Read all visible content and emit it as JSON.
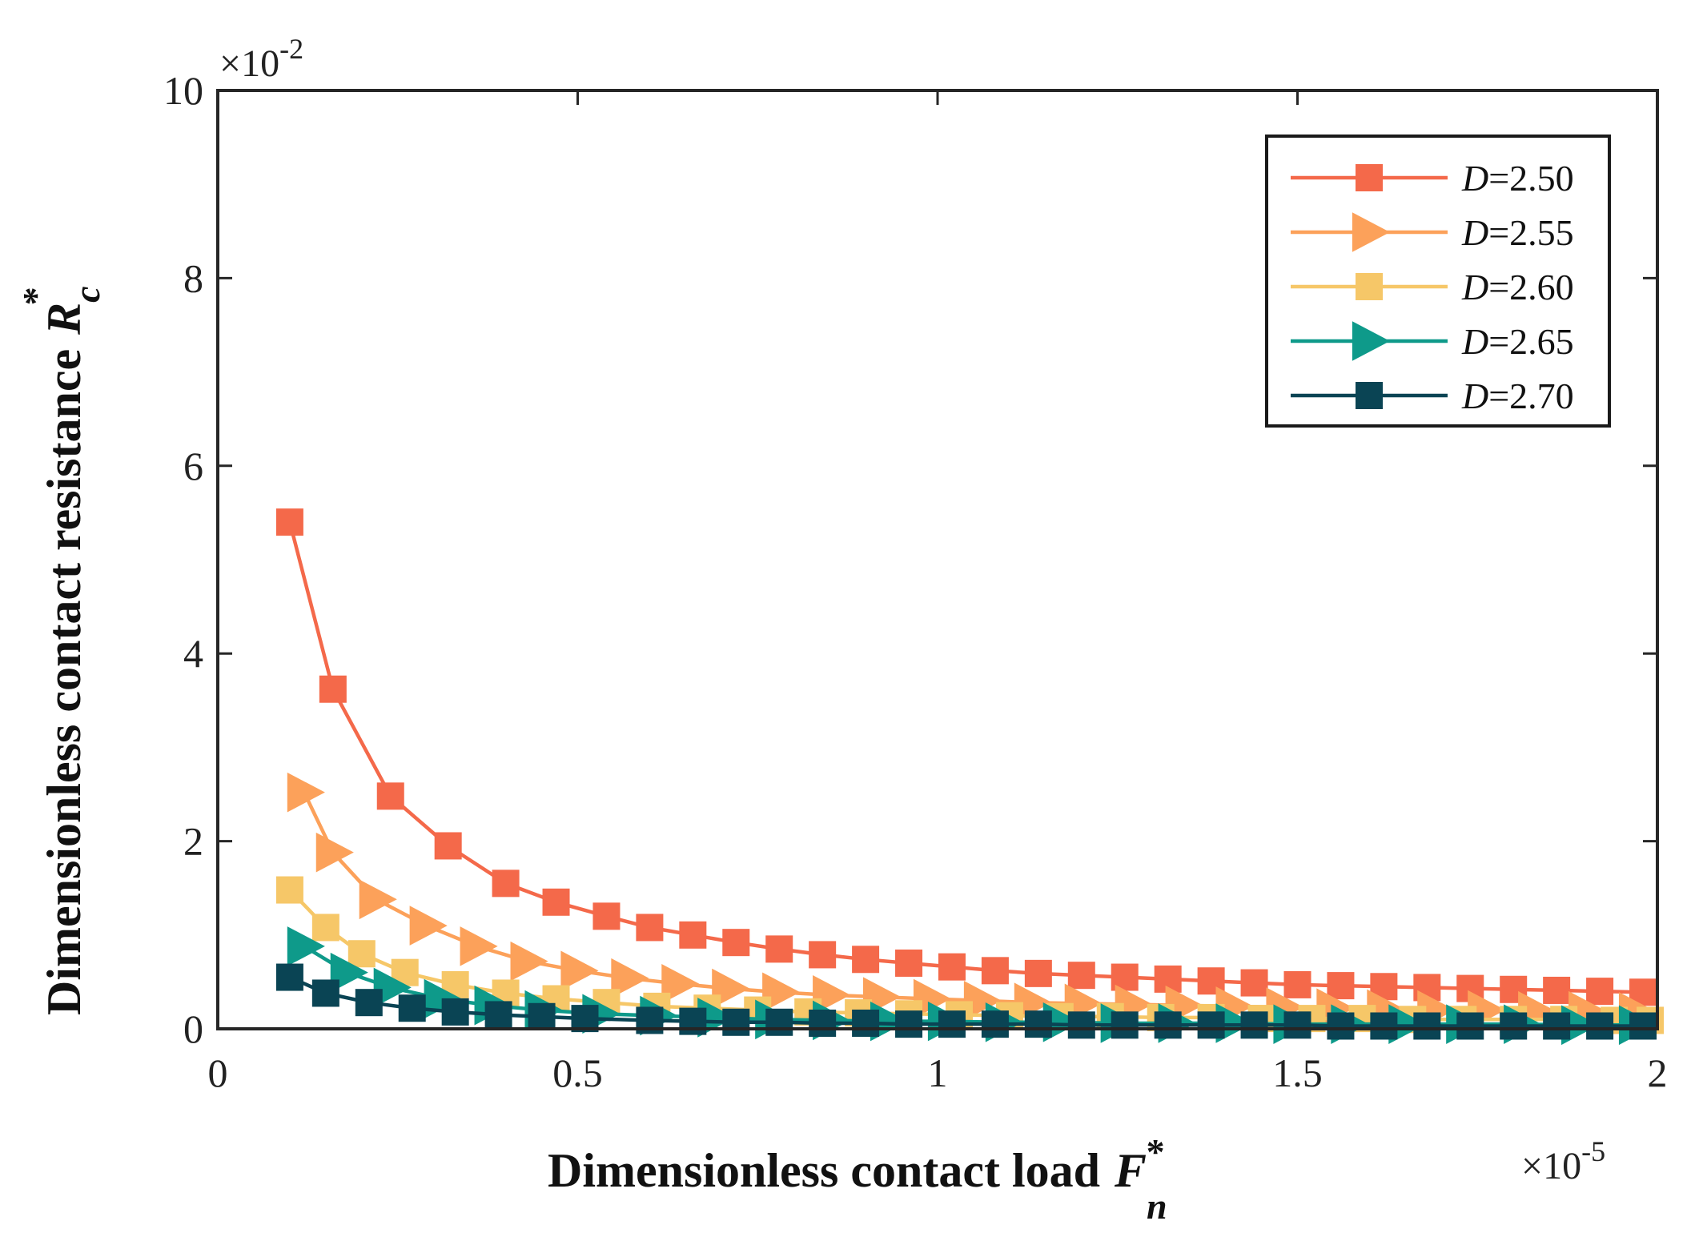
{
  "chart_data": {
    "type": "line",
    "xlabel": "Dimensionless contact load",
    "xlabel_symbol": "F",
    "xlabel_sub": "n",
    "xlabel_sup": "*",
    "ylabel": "Dimensionless contact resistance",
    "ylabel_symbol": "R",
    "ylabel_sub": "c",
    "ylabel_sup": "*",
    "x_exponent_prefix": "×10",
    "x_exponent_power": "-5",
    "y_exponent_prefix": "×10",
    "y_exponent_power": "-2",
    "xlim": [
      0,
      2
    ],
    "ylim": [
      0,
      10
    ],
    "xticks": [
      0,
      0.5,
      1,
      1.5,
      2
    ],
    "xtick_labels": [
      "0",
      "0.5",
      "1",
      "1.5",
      "2"
    ],
    "yticks": [
      0,
      2,
      4,
      6,
      8,
      10
    ],
    "ytick_labels": [
      "0",
      "2",
      "4",
      "6",
      "8",
      "10"
    ],
    "legend_position": "top-right",
    "grid": false,
    "series": [
      {
        "name": "D=2.50",
        "legend_var": "D",
        "legend_value": "=2.50",
        "color": "#F4694A",
        "marker": "square",
        "x": [
          0.1,
          0.16,
          0.24,
          0.32,
          0.4,
          0.47,
          0.54,
          0.6,
          0.66,
          0.72,
          0.78,
          0.84,
          0.9,
          0.96,
          1.02,
          1.08,
          1.14,
          1.2,
          1.26,
          1.32,
          1.38,
          1.44,
          1.5,
          1.56,
          1.62,
          1.68,
          1.74,
          1.8,
          1.86,
          1.92,
          1.98
        ],
        "y": [
          5.4,
          3.62,
          2.48,
          1.95,
          1.55,
          1.35,
          1.2,
          1.08,
          1.0,
          0.92,
          0.85,
          0.79,
          0.74,
          0.7,
          0.66,
          0.62,
          0.59,
          0.57,
          0.55,
          0.53,
          0.51,
          0.49,
          0.47,
          0.46,
          0.45,
          0.44,
          0.43,
          0.42,
          0.41,
          0.4,
          0.39
        ]
      },
      {
        "name": "D=2.55",
        "legend_var": "D",
        "legend_value": "=2.55",
        "color": "#FCA15A",
        "marker": "triangle-right",
        "x": [
          0.12,
          0.16,
          0.22,
          0.29,
          0.36,
          0.43,
          0.5,
          0.57,
          0.64,
          0.71,
          0.78,
          0.85,
          0.92,
          0.99,
          1.06,
          1.13,
          1.2,
          1.27,
          1.34,
          1.41,
          1.48,
          1.55,
          1.62,
          1.69,
          1.76,
          1.83,
          1.9,
          1.97
        ],
        "y": [
          2.52,
          1.88,
          1.38,
          1.1,
          0.88,
          0.72,
          0.62,
          0.54,
          0.48,
          0.43,
          0.39,
          0.36,
          0.34,
          0.32,
          0.3,
          0.28,
          0.27,
          0.26,
          0.25,
          0.24,
          0.23,
          0.22,
          0.21,
          0.2,
          0.2,
          0.19,
          0.19,
          0.18
        ]
      },
      {
        "name": "D=2.60",
        "legend_var": "D",
        "legend_value": "=2.60",
        "color": "#F6C768",
        "marker": "square",
        "x": [
          0.1,
          0.15,
          0.2,
          0.26,
          0.33,
          0.4,
          0.47,
          0.54,
          0.61,
          0.68,
          0.75,
          0.82,
          0.89,
          0.96,
          1.03,
          1.1,
          1.17,
          1.24,
          1.31,
          1.38,
          1.45,
          1.52,
          1.59,
          1.66,
          1.73,
          1.8,
          1.87,
          1.94,
          1.99
        ],
        "y": [
          1.48,
          1.08,
          0.8,
          0.6,
          0.47,
          0.38,
          0.32,
          0.28,
          0.24,
          0.22,
          0.2,
          0.18,
          0.17,
          0.16,
          0.15,
          0.14,
          0.13,
          0.13,
          0.12,
          0.12,
          0.11,
          0.11,
          0.11,
          0.1,
          0.1,
          0.1,
          0.1,
          0.09,
          0.09
        ]
      },
      {
        "name": "D=2.65",
        "legend_var": "D",
        "legend_value": "=2.65",
        "color": "#0E9A8A",
        "marker": "triangle-right",
        "x": [
          0.12,
          0.18,
          0.24,
          0.31,
          0.38,
          0.45,
          0.53,
          0.61,
          0.69,
          0.77,
          0.85,
          0.93,
          1.01,
          1.09,
          1.17,
          1.25,
          1.33,
          1.41,
          1.49,
          1.57,
          1.65,
          1.73,
          1.81,
          1.89,
          1.97
        ],
        "y": [
          0.88,
          0.6,
          0.44,
          0.32,
          0.25,
          0.2,
          0.16,
          0.14,
          0.12,
          0.1,
          0.09,
          0.08,
          0.08,
          0.07,
          0.07,
          0.06,
          0.06,
          0.06,
          0.05,
          0.05,
          0.05,
          0.05,
          0.05,
          0.04,
          0.04
        ]
      },
      {
        "name": "D=2.70",
        "legend_var": "D",
        "legend_value": "=2.70",
        "color": "#0A4454",
        "marker": "square",
        "x": [
          0.1,
          0.15,
          0.21,
          0.27,
          0.33,
          0.39,
          0.45,
          0.51,
          0.6,
          0.66,
          0.72,
          0.78,
          0.84,
          0.9,
          0.96,
          1.02,
          1.08,
          1.14,
          1.2,
          1.26,
          1.32,
          1.38,
          1.44,
          1.5,
          1.56,
          1.62,
          1.68,
          1.74,
          1.8,
          1.86,
          1.92,
          1.98
        ],
        "y": [
          0.55,
          0.38,
          0.28,
          0.22,
          0.18,
          0.15,
          0.13,
          0.11,
          0.09,
          0.08,
          0.07,
          0.07,
          0.06,
          0.06,
          0.05,
          0.05,
          0.05,
          0.05,
          0.04,
          0.04,
          0.04,
          0.04,
          0.04,
          0.04,
          0.03,
          0.03,
          0.03,
          0.03,
          0.03,
          0.03,
          0.03,
          0.03
        ]
      }
    ]
  }
}
